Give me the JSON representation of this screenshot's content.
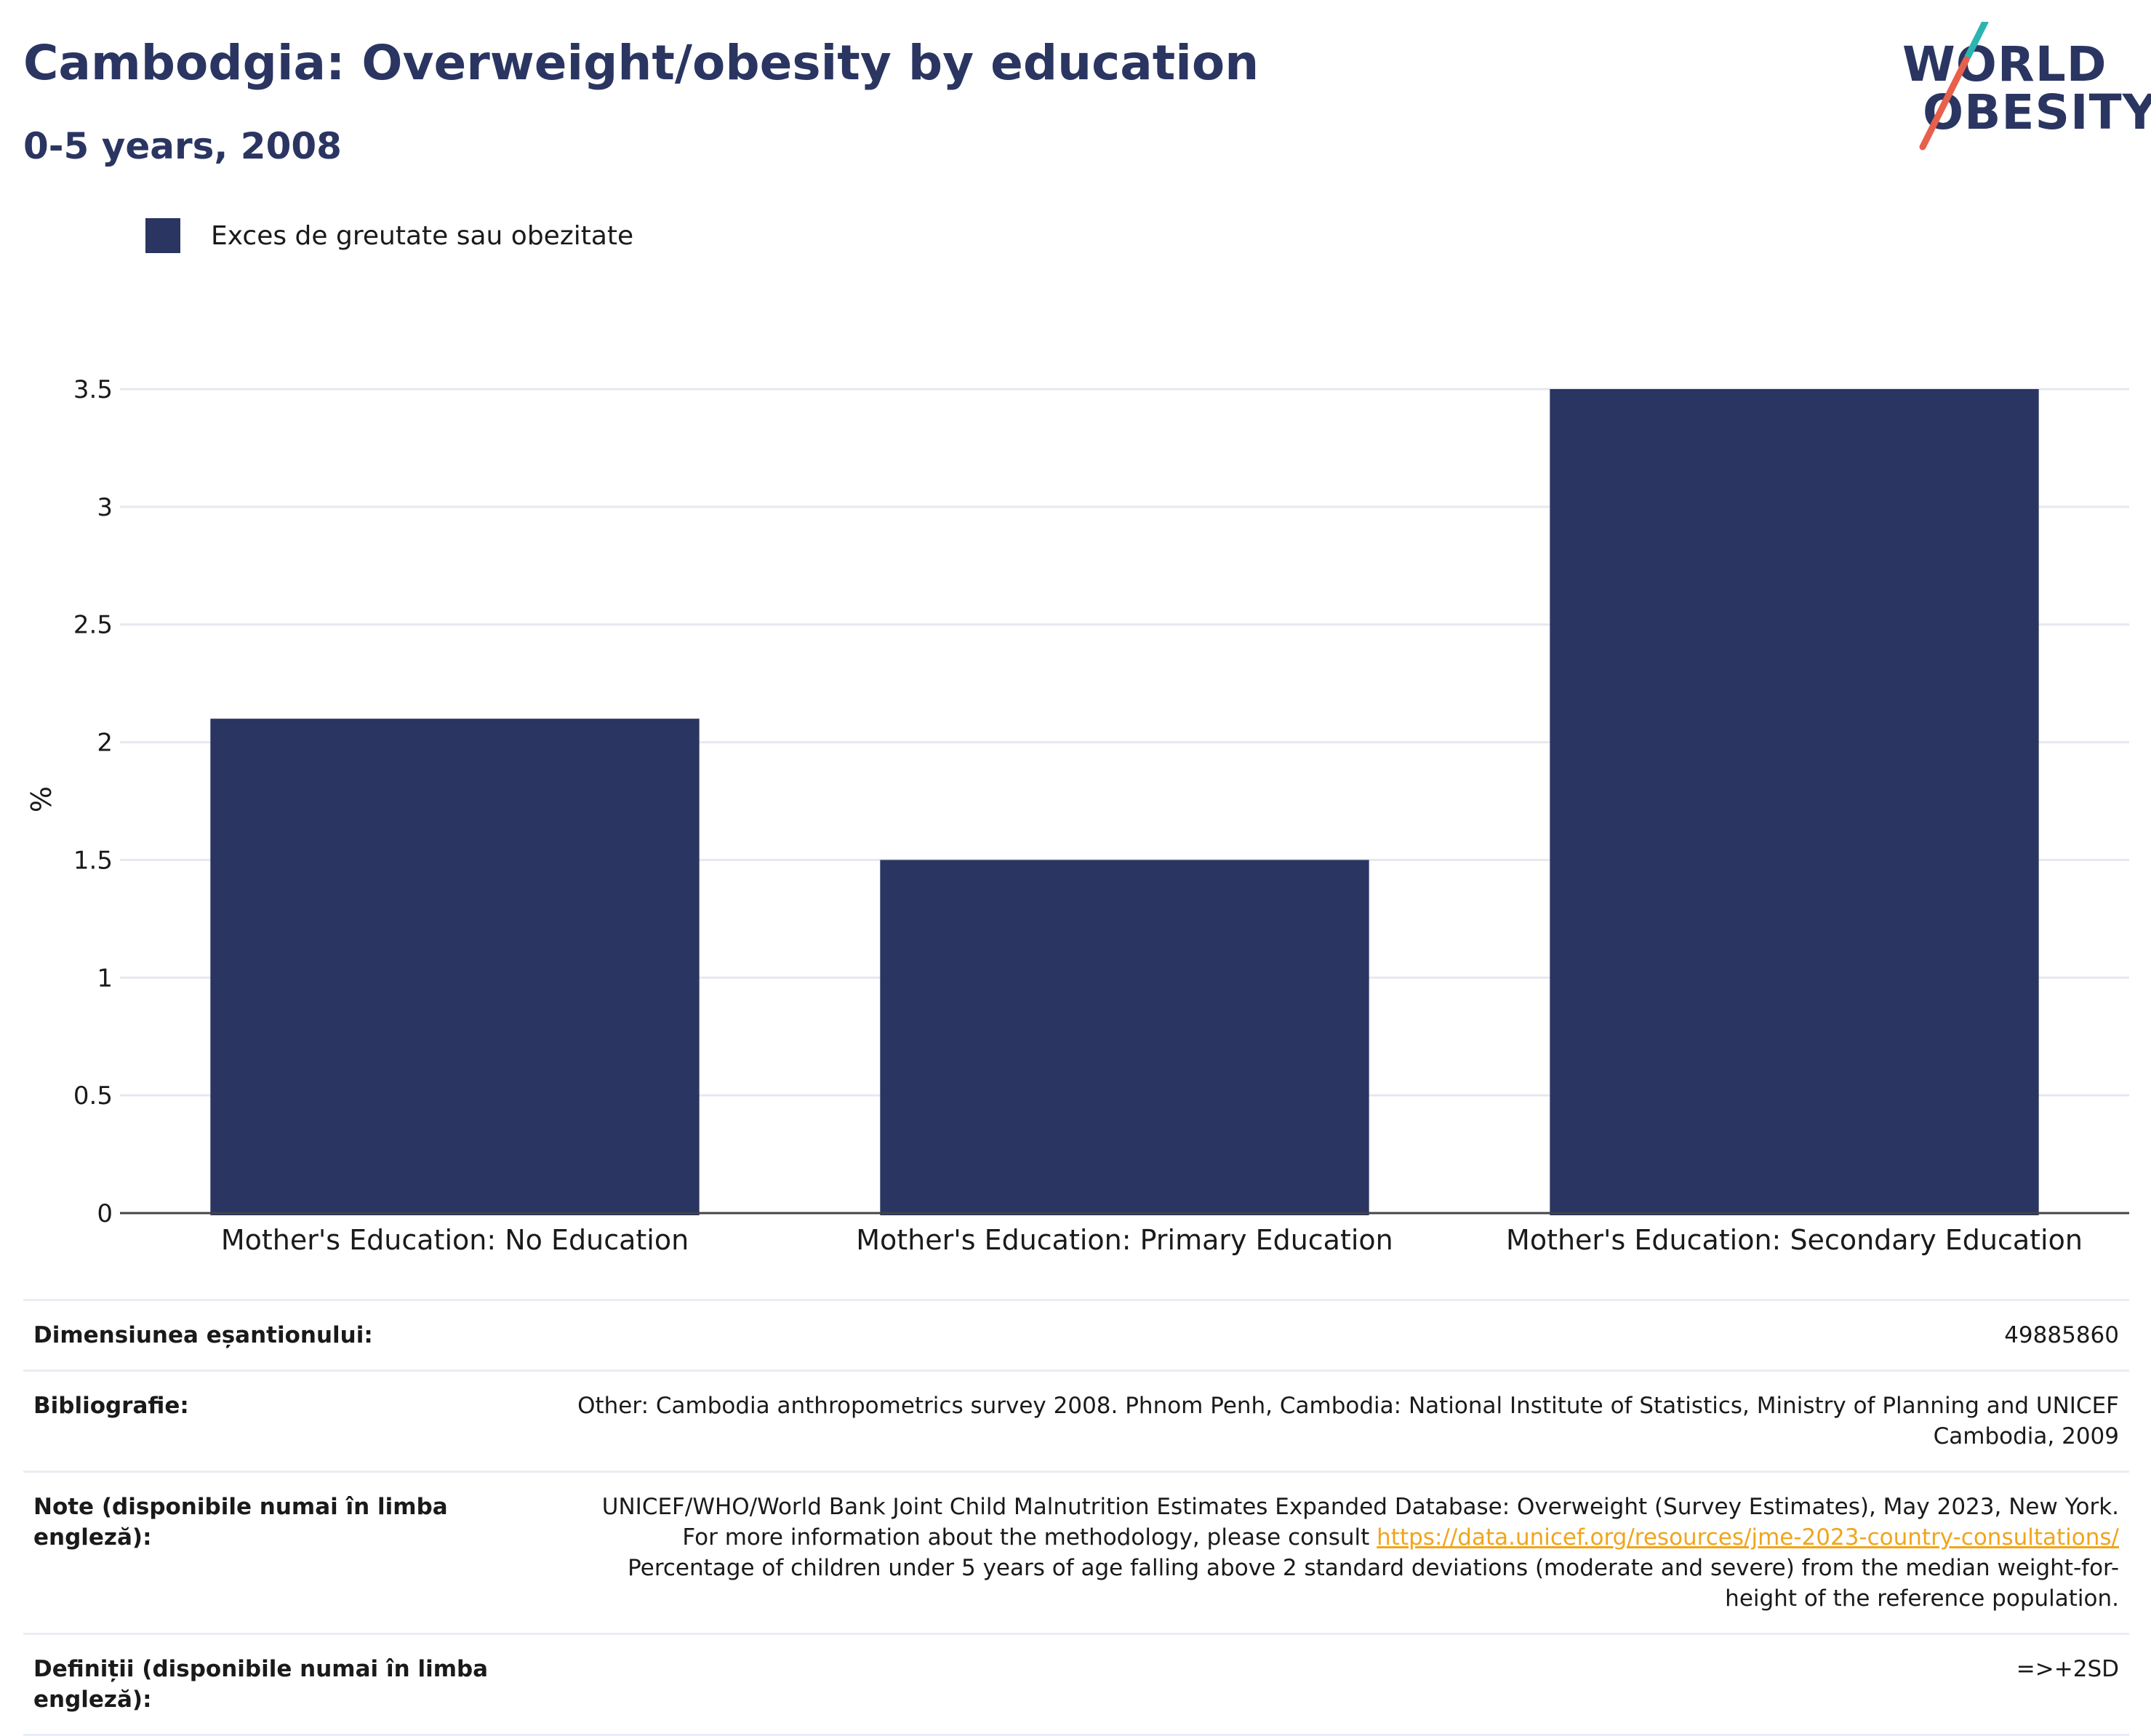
{
  "title": "Cambodgia: Overweight/obesity by education",
  "subtitle": "0-5 years, 2008",
  "logo": {
    "line1": "WORLD",
    "line2": "OBESITY",
    "colors": {
      "text": "#2a3561",
      "teal": "#2cb5b0",
      "coral": "#e8604c"
    }
  },
  "legend": {
    "label": "Exces de greutate sau obezitate",
    "color": "#2a3561"
  },
  "chart_data": {
    "type": "bar",
    "categories": [
      "Mother's Education: No Education",
      "Mother's Education: Primary Education",
      "Mother's Education: Secondary Education"
    ],
    "series": [
      {
        "name": "Exces de greutate sau obezitate",
        "values": [
          2.1,
          1.5,
          3.5
        ],
        "color": "#2a3561"
      }
    ],
    "title": "Cambodgia: Overweight/obesity by education",
    "subtitle": "0-5 years, 2008",
    "xlabel": "",
    "ylabel": "%",
    "ylim": [
      0,
      3.5
    ],
    "yticks": [
      "0",
      "0.5",
      "1",
      "1.5",
      "2",
      "2.5",
      "3",
      "3.5"
    ],
    "grid": true,
    "legend_position": "top-left"
  },
  "info": {
    "sample": {
      "label": "Dimensiunea eșantionului:",
      "value": "49885860"
    },
    "bibliography": {
      "label": "Bibliografie:",
      "value": "Other: Cambodia anthropometrics survey 2008. Phnom Penh, Cambodia: National Institute of Statistics, Ministry of Planning and UNICEF Cambodia, 2009"
    },
    "notes": {
      "label": "Note (disponibile numai în limba engleză):",
      "text_before": "UNICEF/WHO/World Bank Joint Child Malnutrition Estimates Expanded Database: Overweight (Survey Estimates), May 2023, New York. For more information about the methodology, please consult ",
      "link": "https://data.unicef.org/resources/jme-2023-country-consultations/",
      "text_after": " Percentage of children under 5 years of age falling above 2 standard deviations (moderate and severe) from the median weight-for-height of the reference population."
    },
    "definitions": {
      "label": "Definiții (disponibile numai în limba engleză):",
      "value": "=>+2SD"
    }
  }
}
